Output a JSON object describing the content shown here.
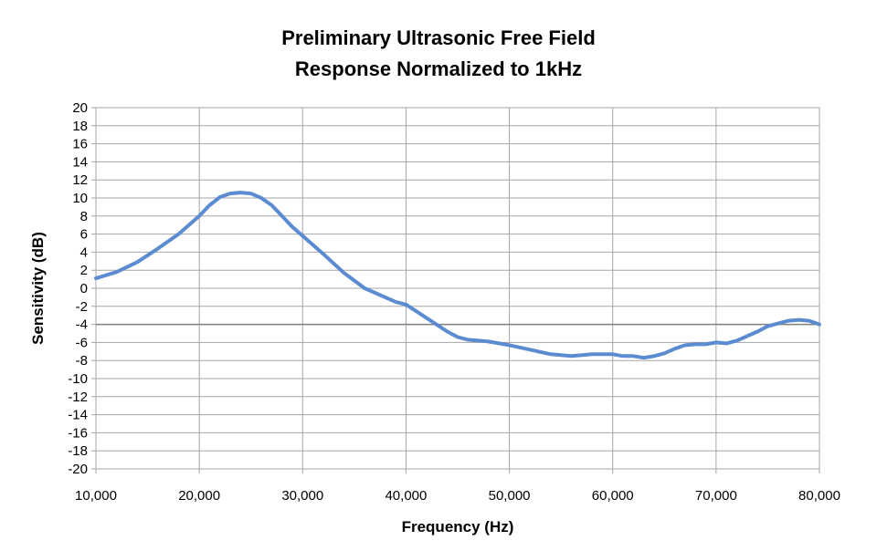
{
  "chart_data": {
    "type": "line",
    "title": [
      "Preliminary Ultrasonic Free Field",
      "Response Normalized to 1kHz"
    ],
    "xlabel": "Frequency (Hz)",
    "ylabel": "Sensitivity (dB)",
    "xlim": [
      10000,
      80000
    ],
    "ylim": [
      -20,
      20
    ],
    "x_ticks": [
      "10,000",
      "20,000",
      "30,000",
      "40,000",
      "50,000",
      "60,000",
      "70,000",
      "80,000"
    ],
    "x_tick_values": [
      10000,
      20000,
      30000,
      40000,
      50000,
      60000,
      70000,
      80000
    ],
    "y_ticks": [
      "20",
      "18",
      "16",
      "14",
      "12",
      "10",
      "8",
      "6",
      "4",
      "2",
      "0",
      "-2",
      "-4",
      "-6",
      "-8",
      "-10",
      "-12",
      "-14",
      "-16",
      "-18",
      "-20"
    ],
    "y_tick_values": [
      20,
      18,
      16,
      14,
      12,
      10,
      8,
      6,
      4,
      2,
      0,
      -2,
      -4,
      -6,
      -8,
      -10,
      -12,
      -14,
      -16,
      -18,
      -20
    ],
    "grid": true,
    "reference_line_y": -4,
    "legend": "none",
    "series": [
      {
        "color": "#5b8bd0",
        "x": [
          10000,
          12000,
          14000,
          16000,
          18000,
          20000,
          21000,
          22000,
          23000,
          24000,
          25000,
          26000,
          27000,
          28000,
          29000,
          30000,
          32000,
          34000,
          36000,
          38000,
          39000,
          40000,
          42000,
          44000,
          45000,
          46000,
          48000,
          50000,
          52000,
          54000,
          56000,
          58000,
          60000,
          61000,
          62000,
          63000,
          64000,
          65000,
          66000,
          67000,
          68000,
          69000,
          70000,
          71000,
          72000,
          73000,
          74000,
          75000,
          76000,
          77000,
          78000,
          79000,
          80000
        ],
        "y": [
          1.1,
          1.8,
          2.9,
          4.4,
          6.0,
          8.0,
          9.2,
          10.1,
          10.5,
          10.6,
          10.5,
          10.0,
          9.2,
          8.0,
          6.8,
          5.8,
          3.8,
          1.7,
          0.0,
          -1.0,
          -1.5,
          -1.8,
          -3.3,
          -4.8,
          -5.4,
          -5.7,
          -5.9,
          -6.3,
          -6.8,
          -7.3,
          -7.5,
          -7.3,
          -7.3,
          -7.5,
          -7.5,
          -7.7,
          -7.5,
          -7.2,
          -6.7,
          -6.3,
          -6.2,
          -6.2,
          -6.0,
          -6.1,
          -5.8,
          -5.3,
          -4.8,
          -4.2,
          -3.9,
          -3.6,
          -3.5,
          -3.6,
          -4.0
        ]
      }
    ]
  }
}
